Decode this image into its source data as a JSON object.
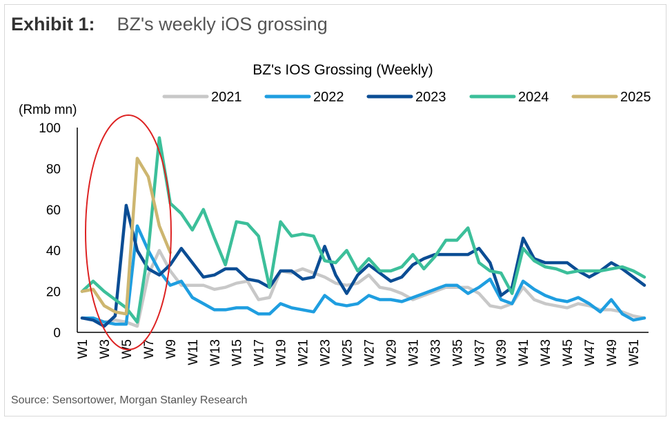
{
  "header": {
    "exhibit_label": "Exhibit 1:",
    "exhibit_title": "BZ's weekly iOS grossing"
  },
  "source": "Source: Sensortower, Morgan Stanley Research",
  "chart_data": {
    "type": "line",
    "title": "BZ's IOS Grossing (Weekly)",
    "ylabel": "(Rmb mn)",
    "xlabel": "",
    "ylim": [
      0,
      100
    ],
    "yticks": [
      0,
      20,
      40,
      60,
      80,
      100
    ],
    "x": [
      "W1",
      "W2",
      "W3",
      "W4",
      "W5",
      "W6",
      "W7",
      "W8",
      "W9",
      "W10",
      "W11",
      "W12",
      "W13",
      "W14",
      "W15",
      "W16",
      "W17",
      "W18",
      "W19",
      "W20",
      "W21",
      "W22",
      "W23",
      "W24",
      "W25",
      "W26",
      "W27",
      "W28",
      "W29",
      "W30",
      "W31",
      "W32",
      "W33",
      "W34",
      "W35",
      "W36",
      "W37",
      "W38",
      "W39",
      "W40",
      "W41",
      "W42",
      "W43",
      "W44",
      "W45",
      "W46",
      "W47",
      "W48",
      "W49",
      "W50",
      "W51",
      "W52"
    ],
    "xtick_labels": [
      "W1",
      "W3",
      "W5",
      "W7",
      "W9",
      "W11",
      "W13",
      "W15",
      "W17",
      "W19",
      "W21",
      "W23",
      "W25",
      "W27",
      "W29",
      "W31",
      "W33",
      "W35",
      "W37",
      "W39",
      "W41",
      "W43",
      "W45",
      "W47",
      "W49",
      "W51"
    ],
    "legend_position": "top",
    "grid": false,
    "annotation": "red ellipse highlighting W1–W9",
    "series": [
      {
        "name": "2021",
        "color": "#c8c8c8",
        "values": [
          7,
          7,
          5,
          6,
          5,
          3,
          28,
          40,
          30,
          23,
          23,
          23,
          21,
          22,
          24,
          25,
          16,
          17,
          30,
          29,
          31,
          29,
          27,
          24,
          23,
          24,
          28,
          22,
          21,
          19,
          16,
          18,
          20,
          22,
          22,
          22,
          19,
          13,
          12,
          14,
          22,
          16,
          14,
          13,
          12,
          14,
          13,
          11,
          11,
          10,
          8,
          7
        ]
      },
      {
        "name": "2022",
        "color": "#1f9ee0",
        "values": [
          7,
          7,
          5,
          4,
          4,
          52,
          40,
          30,
          23,
          25,
          17,
          14,
          11,
          11,
          12,
          12,
          9,
          9,
          14,
          12,
          11,
          10,
          18,
          14,
          13,
          14,
          18,
          16,
          16,
          15,
          17,
          19,
          21,
          23,
          23,
          19,
          22,
          26,
          16,
          14,
          25,
          21,
          18,
          16,
          15,
          17,
          14,
          10,
          16,
          9,
          6,
          7
        ]
      },
      {
        "name": "2023",
        "color": "#0b4d94",
        "values": [
          7,
          6,
          3,
          8,
          62,
          40,
          31,
          28,
          33,
          41,
          34,
          27,
          28,
          31,
          31,
          26,
          25,
          22,
          30,
          30,
          26,
          27,
          42,
          28,
          19,
          28,
          33,
          29,
          25,
          27,
          33,
          36,
          38,
          38,
          38,
          38,
          41,
          34,
          18,
          22,
          46,
          36,
          34,
          34,
          34,
          30,
          27,
          30,
          34,
          31,
          27,
          23
        ]
      },
      {
        "name": "2024",
        "color": "#3cbf9a",
        "values": [
          20,
          25,
          20,
          16,
          12,
          5,
          40,
          95,
          63,
          58,
          50,
          60,
          46,
          33,
          54,
          53,
          47,
          22,
          54,
          47,
          48,
          47,
          35,
          34,
          40,
          30,
          36,
          30,
          30,
          32,
          38,
          31,
          37,
          45,
          45,
          51,
          34,
          30,
          29,
          19,
          41,
          35,
          32,
          31,
          29,
          30,
          30,
          30,
          31,
          32,
          30,
          27
        ]
      },
      {
        "name": "2025",
        "color": "#cdb670",
        "values": [
          20,
          21,
          13,
          10,
          9,
          85,
          76,
          52,
          39,
          null,
          null,
          null,
          null,
          null,
          null,
          null,
          null,
          null,
          null,
          null,
          null,
          null,
          null,
          null,
          null,
          null,
          null,
          null,
          null,
          null,
          null,
          null,
          null,
          null,
          null,
          null,
          null,
          null,
          null,
          null,
          null,
          null,
          null,
          null,
          null,
          null,
          null,
          null,
          null,
          null,
          null,
          null
        ]
      }
    ]
  }
}
